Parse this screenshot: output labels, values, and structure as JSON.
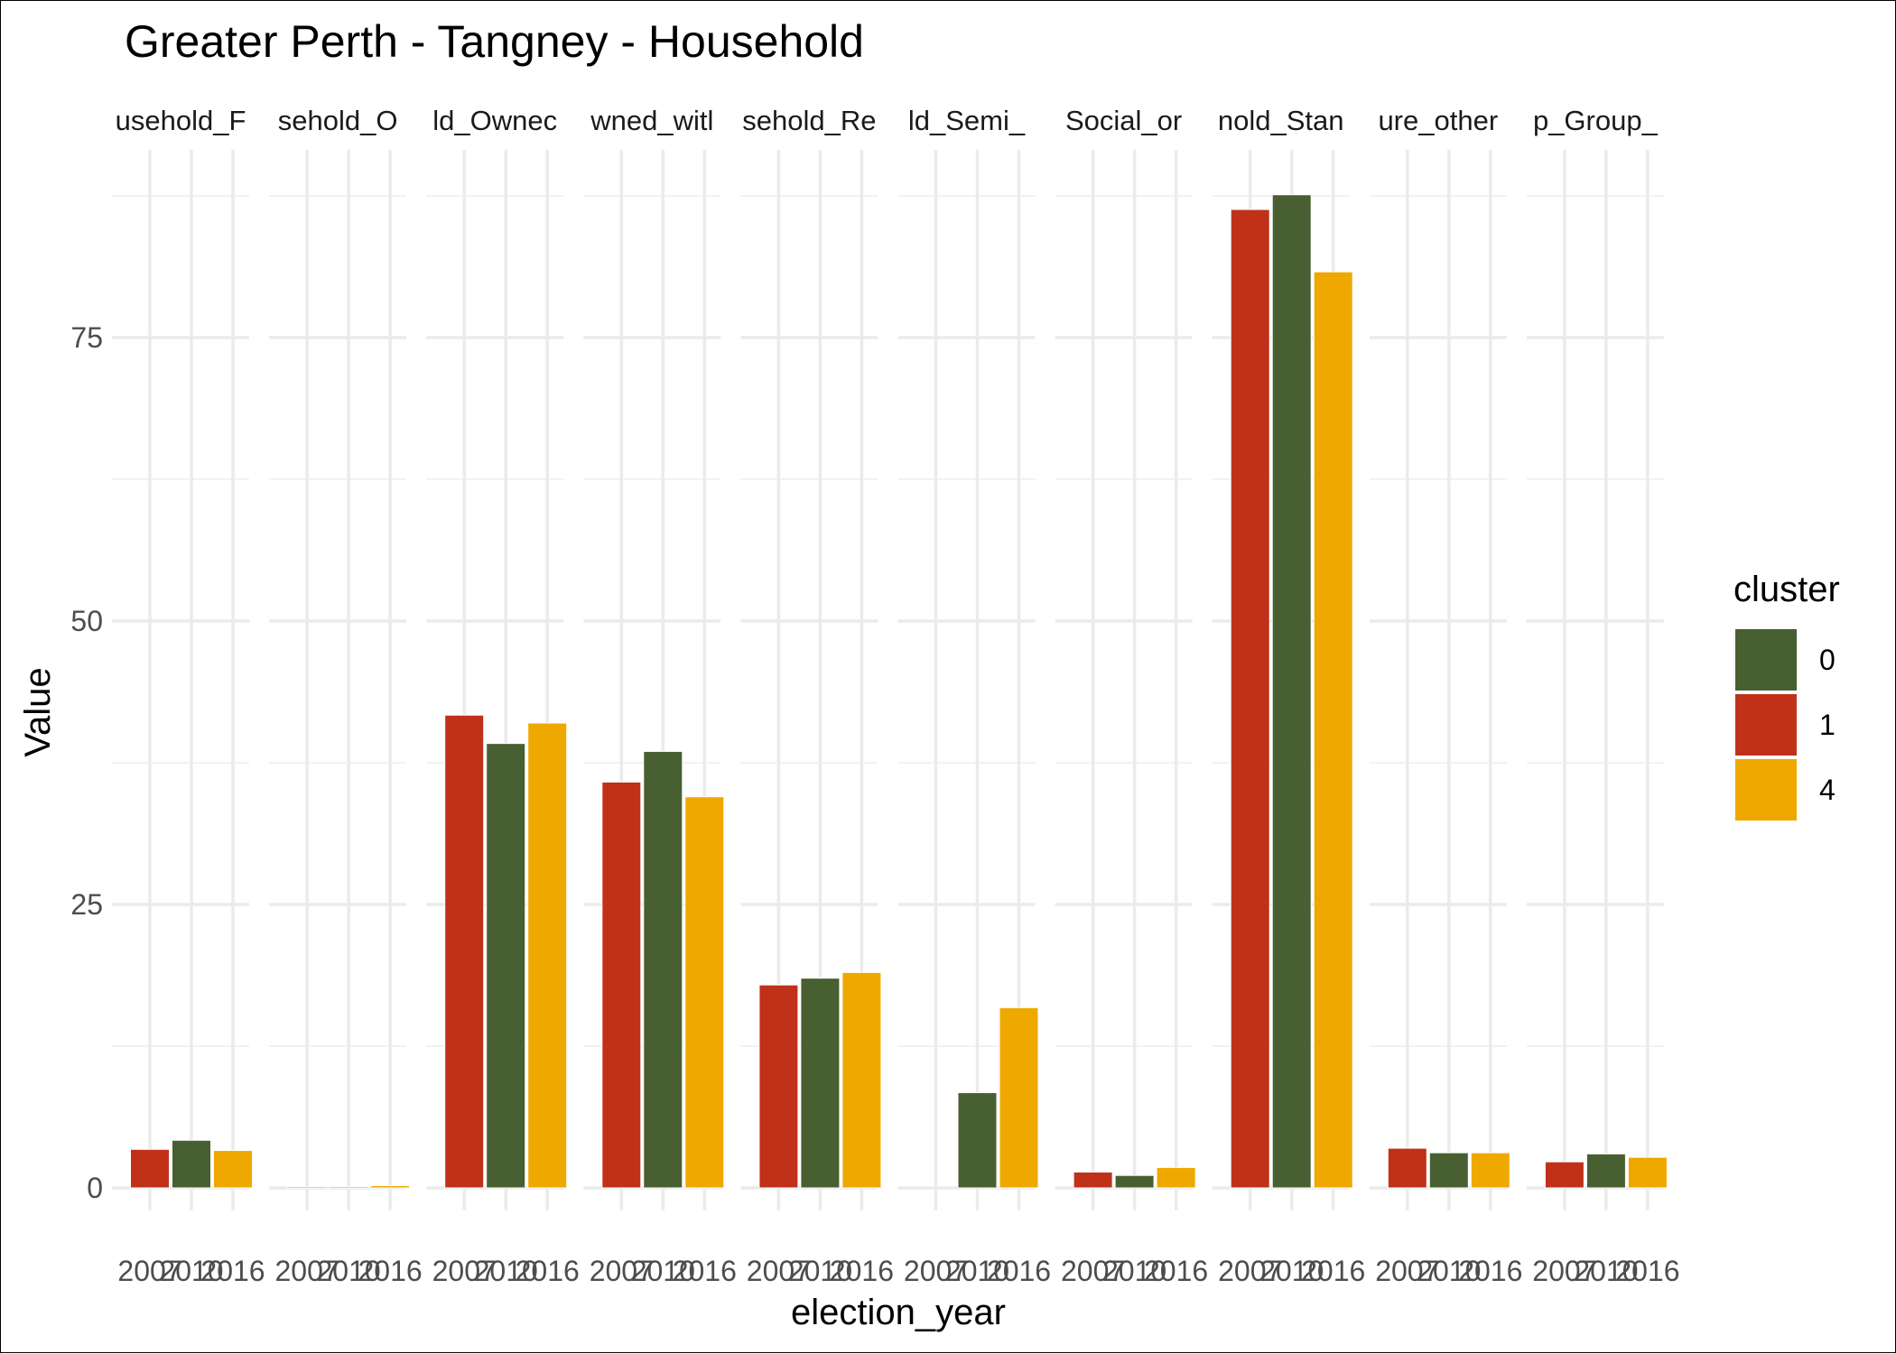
{
  "chart_data": {
    "type": "bar",
    "title": "Greater Perth - Tangney - Household",
    "xlabel": "election_year",
    "ylabel": "Value",
    "ylim": [
      -3,
      95
    ],
    "yticks": [
      0,
      25,
      50,
      75
    ],
    "grid": true,
    "legend": {
      "title": "cluster",
      "position": "right",
      "entries": [
        {
          "label": "0",
          "color": "#485F31"
        },
        {
          "label": "1",
          "color": "#C0311A"
        },
        {
          "label": "4",
          "color": "#EFA800"
        }
      ]
    },
    "x_categories": [
      "2007",
      "2010",
      "2016"
    ],
    "facets": [
      {
        "strip": "usehold_F",
        "bars": [
          {
            "year": "2007",
            "cluster": "1",
            "value": 3.4
          },
          {
            "year": "2010",
            "cluster": "0",
            "value": 4.2
          },
          {
            "year": "2016",
            "cluster": "4",
            "value": 3.3
          }
        ]
      },
      {
        "strip": "sehold_O",
        "bars": [
          {
            "year": "2007",
            "cluster": "1",
            "value": 0.1
          },
          {
            "year": "2010",
            "cluster": "0",
            "value": 0.1
          },
          {
            "year": "2016",
            "cluster": "4",
            "value": 0.2
          }
        ]
      },
      {
        "strip": "ld_Ownec",
        "bars": [
          {
            "year": "2007",
            "cluster": "1",
            "value": 41.7
          },
          {
            "year": "2010",
            "cluster": "0",
            "value": 39.2
          },
          {
            "year": "2016",
            "cluster": "4",
            "value": 41.0
          }
        ]
      },
      {
        "strip": "wned_witl",
        "bars": [
          {
            "year": "2007",
            "cluster": "1",
            "value": 35.8
          },
          {
            "year": "2010",
            "cluster": "0",
            "value": 38.5
          },
          {
            "year": "2016",
            "cluster": "4",
            "value": 34.5
          }
        ]
      },
      {
        "strip": "sehold_Re",
        "bars": [
          {
            "year": "2007",
            "cluster": "1",
            "value": 17.9
          },
          {
            "year": "2010",
            "cluster": "0",
            "value": 18.5
          },
          {
            "year": "2016",
            "cluster": "4",
            "value": 19.0
          }
        ]
      },
      {
        "strip": "ld_Semi_",
        "bars": [
          {
            "year": "2010",
            "cluster": "0",
            "value": 8.4
          },
          {
            "year": "2016",
            "cluster": "4",
            "value": 15.9
          }
        ]
      },
      {
        "strip": "Social_or",
        "bars": [
          {
            "year": "2007",
            "cluster": "1",
            "value": 1.4
          },
          {
            "year": "2010",
            "cluster": "0",
            "value": 1.1
          },
          {
            "year": "2016",
            "cluster": "4",
            "value": 1.8
          }
        ]
      },
      {
        "strip": "nold_Stan",
        "bars": [
          {
            "year": "2007",
            "cluster": "1",
            "value": 86.3
          },
          {
            "year": "2010",
            "cluster": "0",
            "value": 87.6
          },
          {
            "year": "2016",
            "cluster": "4",
            "value": 80.8
          }
        ]
      },
      {
        "strip": "ure_other",
        "bars": [
          {
            "year": "2007",
            "cluster": "1",
            "value": 3.5
          },
          {
            "year": "2010",
            "cluster": "0",
            "value": 3.1
          },
          {
            "year": "2016",
            "cluster": "4",
            "value": 3.1
          }
        ]
      },
      {
        "strip": "p_Group_",
        "bars": [
          {
            "year": "2007",
            "cluster": "1",
            "value": 2.3
          },
          {
            "year": "2010",
            "cluster": "0",
            "value": 3.0
          },
          {
            "year": "2016",
            "cluster": "4",
            "value": 2.7
          }
        ]
      }
    ]
  }
}
